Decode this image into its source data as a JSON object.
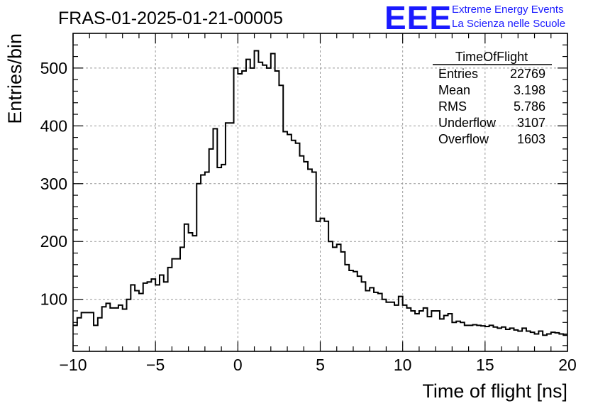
{
  "chart_data": {
    "type": "histogram",
    "title": "FRAS-01-2025-01-21-00005",
    "xlabel": "Time of flight [ns]",
    "ylabel": "Entries/bin",
    "xlim": [
      -10,
      20
    ],
    "ylim": [
      10,
      560
    ],
    "bin_width": 0.25,
    "x_ticks": [
      -10,
      -5,
      0,
      5,
      10,
      15,
      20
    ],
    "x_tick_labels": [
      "−10",
      "−5",
      "0",
      "5",
      "10",
      "15",
      "20"
    ],
    "y_ticks": [
      100,
      200,
      300,
      400,
      500
    ],
    "y_tick_labels": [
      "100",
      "200",
      "300",
      "400",
      "500"
    ],
    "grid": true,
    "line_color": "#000000",
    "values": [
      55,
      68,
      77,
      77,
      77,
      55,
      68,
      87,
      93,
      85,
      85,
      90,
      83,
      100,
      125,
      115,
      110,
      128,
      130,
      135,
      125,
      142,
      130,
      155,
      170,
      170,
      190,
      230,
      215,
      210,
      300,
      315,
      320,
      360,
      395,
      328,
      333,
      405,
      405,
      500,
      490,
      495,
      515,
      500,
      530,
      510,
      505,
      500,
      525,
      495,
      470,
      390,
      385,
      375,
      370,
      348,
      338,
      325,
      320,
      235,
      240,
      235,
      200,
      190,
      195,
      182,
      160,
      150,
      148,
      140,
      130,
      115,
      120,
      112,
      110,
      100,
      95,
      95,
      90,
      105,
      90,
      85,
      80,
      75,
      80,
      85,
      70,
      80,
      80,
      66,
      72,
      75,
      60,
      62,
      60,
      55,
      55,
      56,
      55,
      54,
      53,
      55,
      52,
      50,
      52,
      48,
      50,
      47,
      45,
      50,
      45,
      43,
      40,
      45,
      38,
      40,
      43,
      42,
      40,
      38
    ]
  },
  "stats_box": {
    "title": "TimeOfFlight",
    "rows": [
      {
        "label": "Entries",
        "value": "22769"
      },
      {
        "label": "Mean",
        "value": "3.198"
      },
      {
        "label": "RMS",
        "value": "5.786"
      },
      {
        "label": "Underflow",
        "value": "3107"
      },
      {
        "label": "Overflow",
        "value": "1603"
      }
    ]
  },
  "logo": {
    "mark": "EEE",
    "line1": "Extreme Energy Events",
    "line2": "La Scienza nelle Scuole",
    "color": "#1a1aff"
  }
}
